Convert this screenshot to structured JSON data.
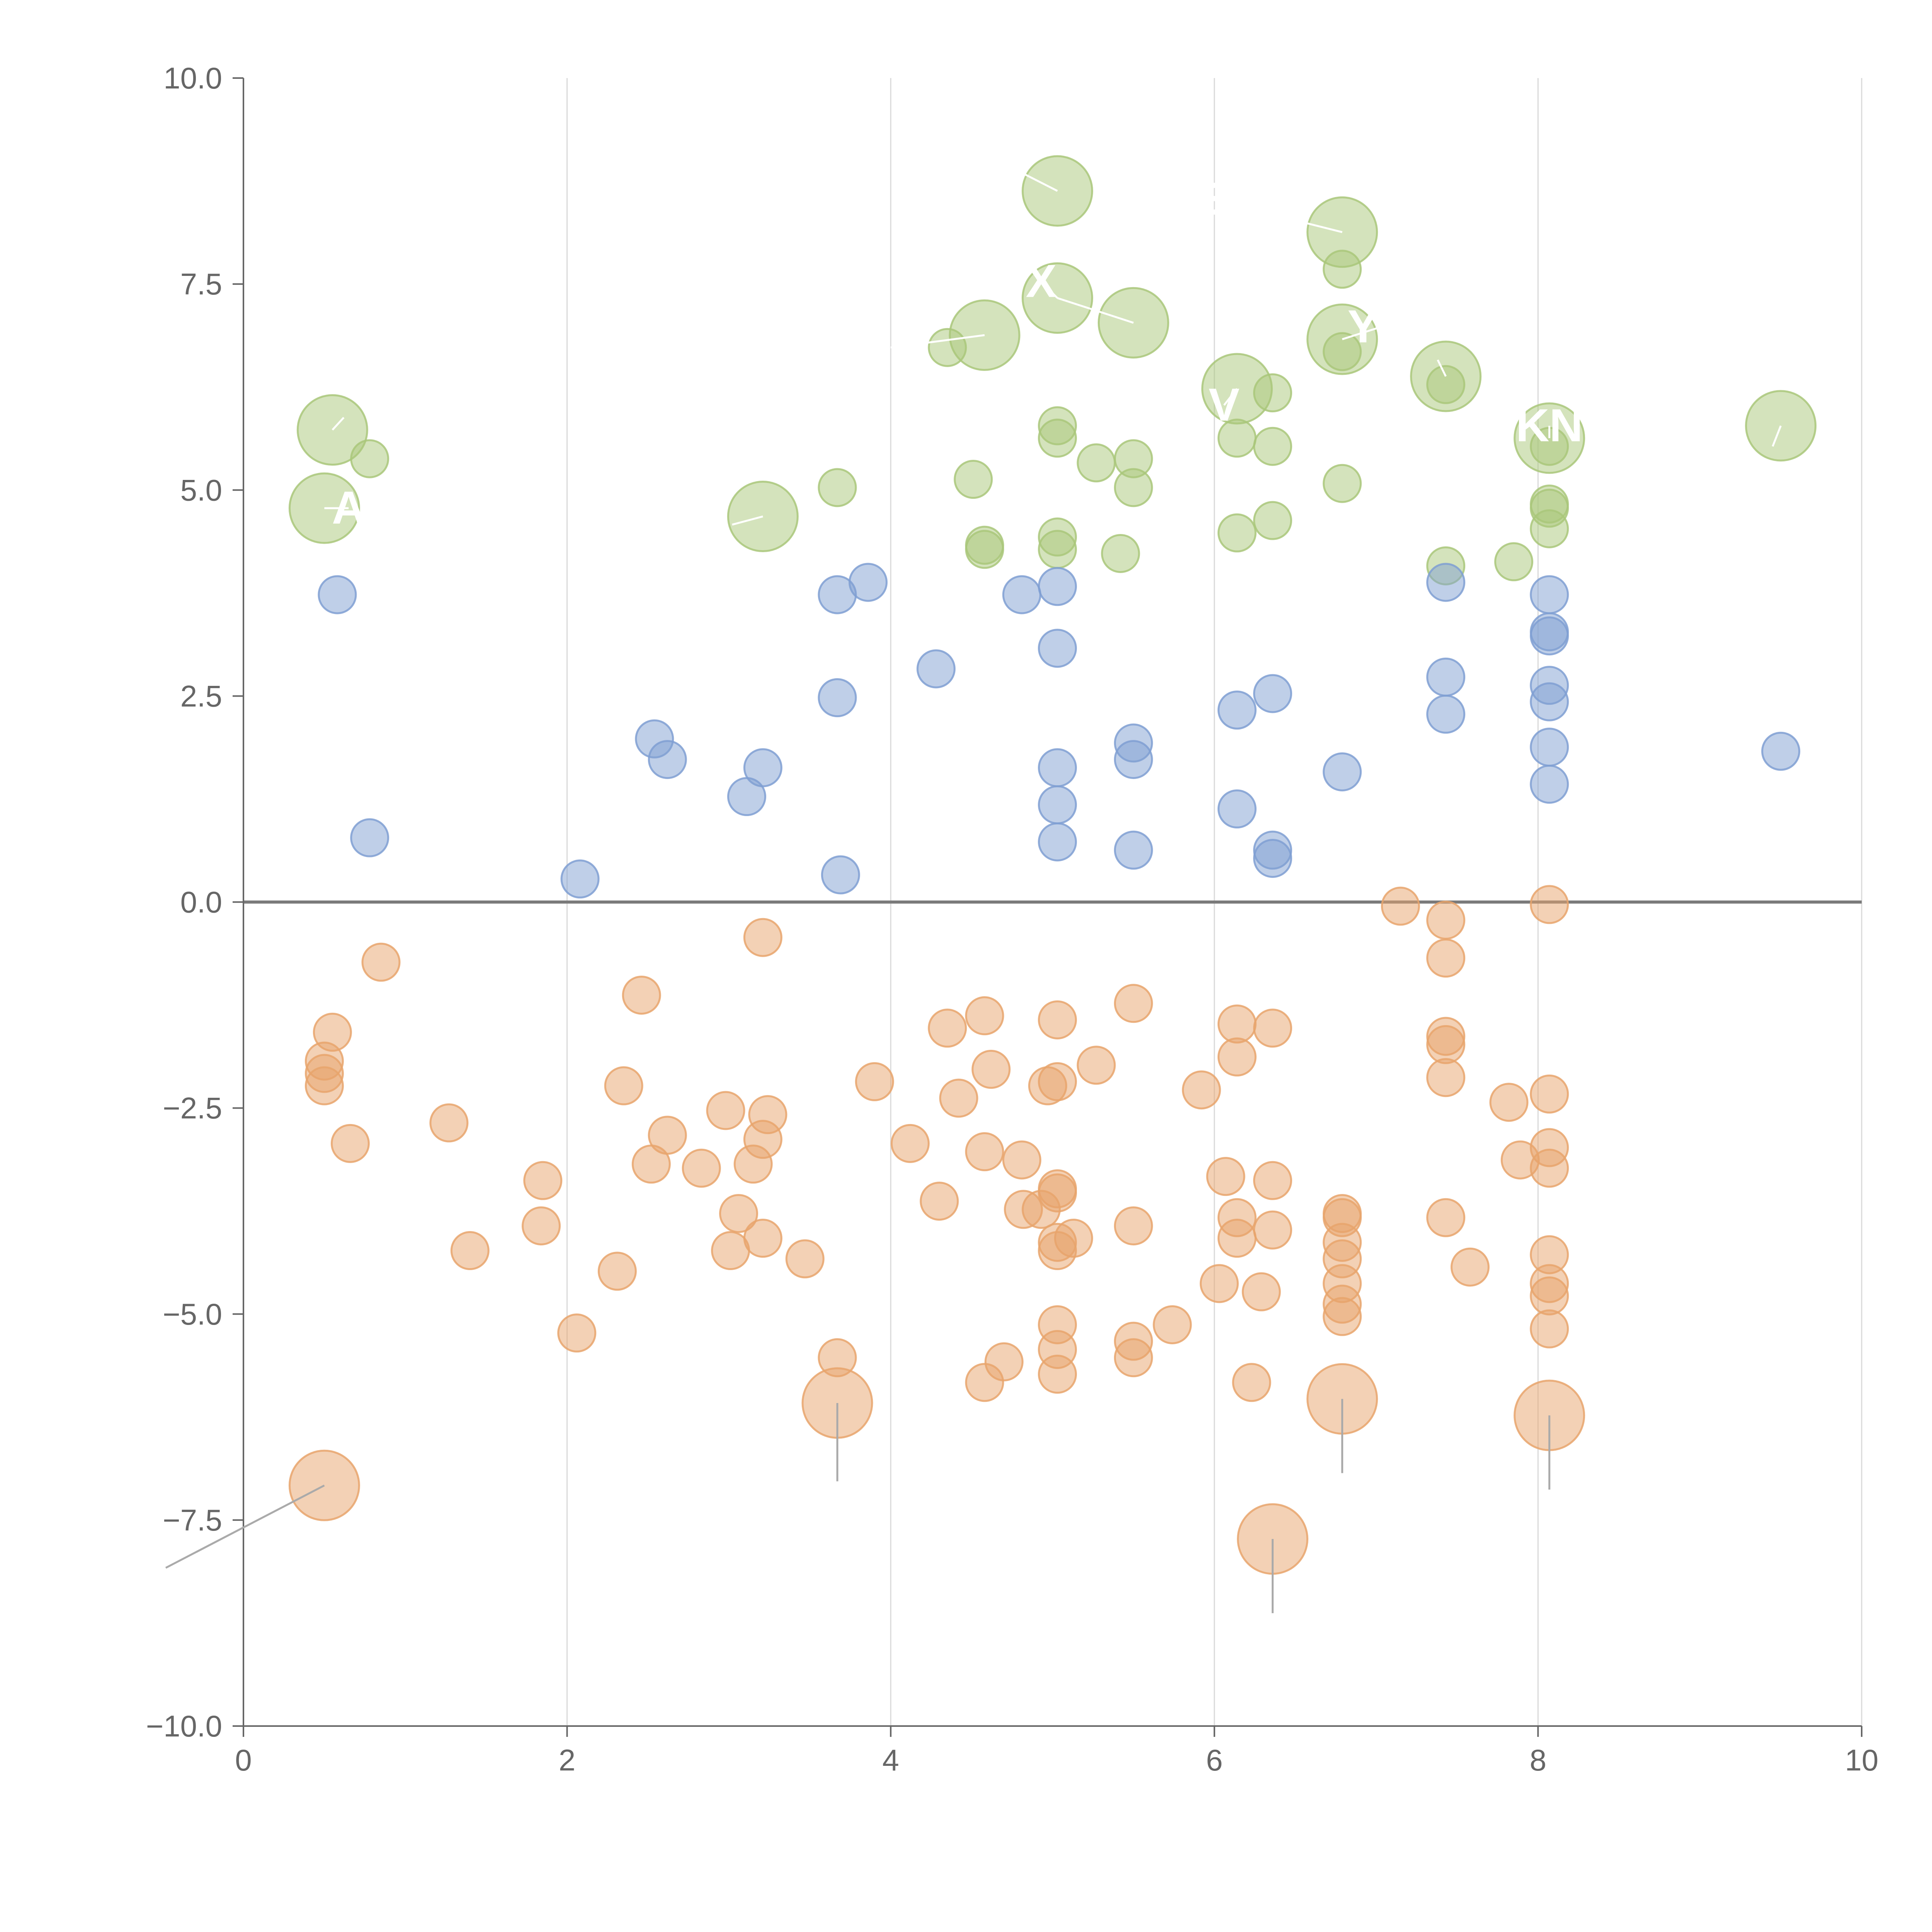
{
  "chart_data": {
    "type": "scatter",
    "title": "",
    "xlabel": "",
    "ylabel": "",
    "xlim": [
      0,
      10
    ],
    "ylim": [
      -10,
      10
    ],
    "x_ticks": [
      0,
      2,
      4,
      6,
      8,
      10
    ],
    "y_ticks": [
      -10,
      -7.5,
      -5,
      -2.5,
      0,
      2.5,
      5,
      7.5,
      10
    ],
    "x_tick_labels": [
      "0",
      "2",
      "4",
      "6",
      "8",
      "10"
    ],
    "y_tick_labels": [
      "−10.0",
      "−7.5",
      "−5.0",
      "−2.5",
      "0.0",
      "2.5",
      "5.0",
      "7.5",
      "10.0"
    ],
    "grid": "vertical",
    "zero_line": true,
    "colors": {
      "green": "#a9c77a",
      "blue": "#7f9fd2",
      "orange": "#e8a46c",
      "axis": "#666666",
      "grid": "#d9d9d9",
      "zero": "#7a7a7a",
      "callout": "#aaaaaa"
    },
    "series": [
      {
        "name": "green",
        "color": "#a9c77a",
        "points": [
          [
            5.03,
            8.63,
            2
          ],
          [
            6.79,
            8.13,
            2
          ],
          [
            5.03,
            7.33,
            2
          ],
          [
            5.5,
            7.03,
            2
          ],
          [
            4.58,
            6.88,
            2
          ],
          [
            6.79,
            6.83,
            2
          ],
          [
            7.43,
            6.38,
            2
          ],
          [
            6.14,
            6.23,
            2
          ],
          [
            0.55,
            5.73,
            2
          ],
          [
            8.07,
            5.63,
            2
          ],
          [
            9.5,
            5.78,
            2
          ],
          [
            0.5,
            4.78,
            2
          ],
          [
            3.21,
            4.68,
            2
          ],
          [
            6.79,
            7.68,
            1
          ],
          [
            4.35,
            6.73,
            1
          ],
          [
            6.79,
            6.68,
            1
          ],
          [
            7.43,
            6.28,
            1
          ],
          [
            6.36,
            6.18,
            1
          ],
          [
            5.03,
            5.78,
            1
          ],
          [
            5.03,
            5.63,
            1
          ],
          [
            6.14,
            5.63,
            1
          ],
          [
            6.36,
            5.53,
            1
          ],
          [
            8.07,
            5.53,
            1
          ],
          [
            0.78,
            5.38,
            1
          ],
          [
            5.27,
            5.33,
            1
          ],
          [
            5.5,
            5.38,
            1
          ],
          [
            4.51,
            5.13,
            1
          ],
          [
            6.79,
            5.08,
            1
          ],
          [
            3.67,
            5.03,
            1
          ],
          [
            5.5,
            5.03,
            1
          ],
          [
            8.07,
            4.83,
            1
          ],
          [
            8.07,
            4.78,
            1
          ],
          [
            6.36,
            4.63,
            1
          ],
          [
            8.07,
            4.53,
            1
          ],
          [
            6.14,
            4.48,
            1
          ],
          [
            5.03,
            4.43,
            1
          ],
          [
            4.58,
            4.33,
            1
          ],
          [
            4.58,
            4.28,
            1
          ],
          [
            5.03,
            4.28,
            1
          ],
          [
            5.42,
            4.23,
            1
          ],
          [
            7.43,
            4.08,
            1
          ],
          [
            7.85,
            4.13,
            1
          ]
        ]
      },
      {
        "name": "blue",
        "color": "#7f9fd2",
        "points": [
          [
            0.58,
            3.73,
            1
          ],
          [
            3.86,
            3.88,
            1
          ],
          [
            7.43,
            3.88,
            1
          ],
          [
            3.67,
            3.73,
            1
          ],
          [
            4.81,
            3.73,
            1
          ],
          [
            5.03,
            3.83,
            1
          ],
          [
            8.07,
            3.73,
            1
          ],
          [
            8.07,
            3.28,
            1
          ],
          [
            8.07,
            3.23,
            1
          ],
          [
            5.03,
            3.08,
            1
          ],
          [
            4.28,
            2.83,
            1
          ],
          [
            7.43,
            2.73,
            1
          ],
          [
            8.07,
            2.63,
            1
          ],
          [
            6.36,
            2.53,
            1
          ],
          [
            3.67,
            2.48,
            1
          ],
          [
            8.07,
            2.43,
            1
          ],
          [
            6.14,
            2.33,
            1
          ],
          [
            7.43,
            2.28,
            1
          ],
          [
            2.54,
            1.98,
            1
          ],
          [
            5.5,
            1.93,
            1
          ],
          [
            8.07,
            1.88,
            1
          ],
          [
            9.5,
            1.83,
            1
          ],
          [
            2.62,
            1.73,
            1
          ],
          [
            5.5,
            1.73,
            1
          ],
          [
            3.21,
            1.63,
            1
          ],
          [
            5.03,
            1.63,
            1
          ],
          [
            6.79,
            1.58,
            1
          ],
          [
            8.07,
            1.43,
            1
          ],
          [
            3.11,
            1.28,
            1
          ],
          [
            5.03,
            1.18,
            1
          ],
          [
            6.14,
            1.13,
            1
          ],
          [
            0.78,
            0.78,
            1
          ],
          [
            5.03,
            0.73,
            1
          ],
          [
            5.5,
            0.63,
            1
          ],
          [
            6.36,
            0.63,
            1
          ],
          [
            6.36,
            0.53,
            1
          ],
          [
            2.08,
            0.28,
            1
          ],
          [
            3.69,
            0.33,
            1
          ]
        ]
      },
      {
        "name": "orange",
        "color": "#e8a46c",
        "points": [
          [
            7.15,
            -0.05,
            1
          ],
          [
            8.07,
            -0.03,
            1
          ],
          [
            7.43,
            -0.22,
            1
          ],
          [
            3.21,
            -0.43,
            1
          ],
          [
            7.43,
            -0.68,
            1
          ],
          [
            0.85,
            -0.73,
            1
          ],
          [
            2.46,
            -1.13,
            1
          ],
          [
            5.5,
            -1.23,
            1
          ],
          [
            0.55,
            -1.58,
            1
          ],
          [
            4.58,
            -1.38,
            1
          ],
          [
            5.03,
            -1.43,
            1
          ],
          [
            6.14,
            -1.48,
            1
          ],
          [
            6.36,
            -1.53,
            1
          ],
          [
            4.35,
            -1.53,
            1
          ],
          [
            7.43,
            -1.63,
            1
          ],
          [
            7.43,
            -1.73,
            1
          ],
          [
            6.14,
            -1.88,
            1
          ],
          [
            0.5,
            -1.93,
            1
          ],
          [
            5.27,
            -1.98,
            1
          ],
          [
            4.62,
            -2.03,
            1
          ],
          [
            0.5,
            -2.08,
            1
          ],
          [
            3.9,
            -2.18,
            1
          ],
          [
            5.03,
            -2.18,
            1
          ],
          [
            7.43,
            -2.13,
            1
          ],
          [
            4.97,
            -2.23,
            1
          ],
          [
            0.5,
            -2.23,
            1
          ],
          [
            2.35,
            -2.23,
            1
          ],
          [
            5.92,
            -2.28,
            1
          ],
          [
            8.07,
            -2.33,
            1
          ],
          [
            4.42,
            -2.38,
            1
          ],
          [
            7.82,
            -2.43,
            1
          ],
          [
            2.98,
            -2.53,
            1
          ],
          [
            3.24,
            -2.58,
            1
          ],
          [
            1.27,
            -2.68,
            1
          ],
          [
            2.62,
            -2.83,
            1
          ],
          [
            3.21,
            -2.88,
            1
          ],
          [
            4.12,
            -2.93,
            1
          ],
          [
            0.66,
            -2.93,
            1
          ],
          [
            8.07,
            -2.98,
            1
          ],
          [
            4.58,
            -3.03,
            1
          ],
          [
            4.81,
            -3.13,
            1
          ],
          [
            2.52,
            -3.18,
            1
          ],
          [
            7.89,
            -3.13,
            1
          ],
          [
            3.15,
            -3.18,
            1
          ],
          [
            8.07,
            -3.23,
            1
          ],
          [
            2.83,
            -3.23,
            1
          ],
          [
            6.07,
            -3.33,
            1
          ],
          [
            1.85,
            -3.38,
            1
          ],
          [
            6.36,
            -3.38,
            1
          ],
          [
            5.03,
            -3.48,
            1
          ],
          [
            5.03,
            -3.53,
            1
          ],
          [
            4.3,
            -3.63,
            1
          ],
          [
            4.93,
            -3.73,
            1
          ],
          [
            4.82,
            -3.73,
            1
          ],
          [
            3.06,
            -3.78,
            1
          ],
          [
            6.79,
            -3.78,
            1
          ],
          [
            6.79,
            -3.83,
            1
          ],
          [
            7.43,
            -3.83,
            1
          ],
          [
            6.14,
            -3.83,
            1
          ],
          [
            1.84,
            -3.93,
            1
          ],
          [
            5.5,
            -3.93,
            1
          ],
          [
            6.36,
            -3.98,
            1
          ],
          [
            3.21,
            -4.08,
            1
          ],
          [
            5.13,
            -4.08,
            1
          ],
          [
            6.14,
            -4.08,
            1
          ],
          [
            6.79,
            -4.13,
            1
          ],
          [
            5.03,
            -4.13,
            1
          ],
          [
            5.03,
            -4.23,
            1
          ],
          [
            3.01,
            -4.23,
            1
          ],
          [
            1.4,
            -4.23,
            1
          ],
          [
            8.07,
            -4.28,
            1
          ],
          [
            6.79,
            -4.33,
            1
          ],
          [
            3.47,
            -4.33,
            1
          ],
          [
            7.58,
            -4.43,
            1
          ],
          [
            2.31,
            -4.48,
            1
          ],
          [
            6.03,
            -4.63,
            1
          ],
          [
            6.79,
            -4.63,
            1
          ],
          [
            8.07,
            -4.63,
            1
          ],
          [
            6.29,
            -4.73,
            1
          ],
          [
            8.07,
            -4.78,
            1
          ],
          [
            6.79,
            -4.88,
            1
          ],
          [
            6.79,
            -5.03,
            1
          ],
          [
            5.74,
            -5.13,
            1
          ],
          [
            5.03,
            -5.13,
            1
          ],
          [
            8.07,
            -5.18,
            1
          ],
          [
            2.06,
            -5.23,
            1
          ],
          [
            5.5,
            -5.33,
            1
          ],
          [
            5.03,
            -5.43,
            1
          ],
          [
            3.67,
            -5.53,
            1
          ],
          [
            5.5,
            -5.53,
            1
          ],
          [
            4.7,
            -5.58,
            1
          ],
          [
            5.03,
            -5.73,
            1
          ],
          [
            4.58,
            -5.83,
            1
          ],
          [
            6.23,
            -5.83,
            1
          ],
          [
            3.67,
            -6.08,
            2
          ],
          [
            6.79,
            -6.03,
            2
          ],
          [
            8.07,
            -6.23,
            2
          ],
          [
            0.5,
            -7.08,
            2
          ],
          [
            6.36,
            -7.73,
            2
          ]
        ]
      }
    ],
    "annotations": [
      {
        "text": "",
        "x": 5.03,
        "y": 8.63,
        "tx": 4.08,
        "ty": 9.58
      },
      {
        "text": "E",
        "x": 6.79,
        "y": 8.13,
        "tx": 5.98,
        "ty": 8.53
      },
      {
        "text": "X",
        "x": 5.03,
        "y": 7.33,
        "tx": 4.93,
        "ty": 7.53
      },
      {
        "text": "",
        "x": 5.5,
        "y": 7.03,
        "tx": 5.03,
        "ty": 7.33
      },
      {
        "text": "",
        "x": 4.58,
        "y": 6.88,
        "tx": 4.0,
        "ty": 6.73
      },
      {
        "text": "YO",
        "x": 6.79,
        "y": 6.83,
        "tx": 7.03,
        "ty": 6.98
      },
      {
        "text": "",
        "x": 7.43,
        "y": 6.38,
        "tx": 7.38,
        "ty": 6.58
      },
      {
        "text": "V",
        "x": 6.14,
        "y": 6.23,
        "tx": 6.06,
        "ty": 6.03
      },
      {
        "text": "KN",
        "x": 8.07,
        "y": 5.63,
        "tx": 8.07,
        "ty": 5.78
      },
      {
        "text": "",
        "x": 0.55,
        "y": 5.73,
        "tx": 0.62,
        "ty": 5.88
      },
      {
        "text": "",
        "x": 9.5,
        "y": 5.78,
        "tx": 9.45,
        "ty": 5.53
      },
      {
        "text": "A",
        "x": 0.5,
        "y": 4.78,
        "tx": 0.65,
        "ty": 4.78
      },
      {
        "text": "",
        "x": 3.21,
        "y": 4.68,
        "tx": 3.02,
        "ty": 4.58
      },
      {
        "text": "",
        "x": 3.67,
        "y": -6.08,
        "tx": 3.67,
        "ty": -7.03
      },
      {
        "text": "",
        "x": 6.79,
        "y": -6.03,
        "tx": 6.79,
        "ty": -6.93
      },
      {
        "text": "",
        "x": 8.07,
        "y": -6.23,
        "tx": 8.07,
        "ty": -7.13
      },
      {
        "text": "",
        "x": 0.5,
        "y": -7.08,
        "tx": -0.48,
        "ty": -8.08
      },
      {
        "text": "",
        "x": 6.36,
        "y": -7.73,
        "tx": 6.36,
        "ty": -8.63
      }
    ]
  }
}
